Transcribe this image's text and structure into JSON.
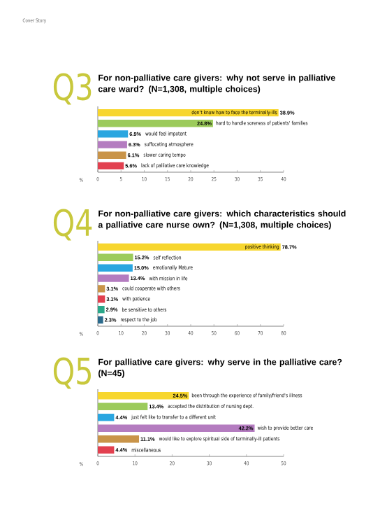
{
  "chart_data": [
    {
      "type": "bar",
      "orientation": "horizontal",
      "title": "For non-palliative care givers: why not serve in palliative care ward? (N=1,308, multiple choices)",
      "xlabel": "%",
      "annotations": [
        "Q3",
        "Cover Story"
      ],
      "categories": [
        "don't know how to face the terminally-ills",
        "hard to handle soreness of patients' families",
        "would feel impotent",
        "suffocating atmosphere",
        "slower caring tempo",
        "lack of palliative care knowledge"
      ],
      "values": [
        38.9,
        24.8,
        6.5,
        6.3,
        6.1,
        5.6
      ],
      "value_labels": [
        "38.9%",
        "24.8%",
        "6.5%",
        "6.3%",
        "6.1%",
        "5.6%"
      ],
      "colors": [
        "#f7d62e",
        "#9ccb5b",
        "#2aa6e0",
        "#b47cc0",
        "#c99449",
        "#e2404f"
      ],
      "xlim": [
        0,
        40
      ],
      "xticks": [
        0,
        5,
        10,
        15,
        20,
        25,
        30,
        35,
        40
      ]
    },
    {
      "type": "bar",
      "orientation": "horizontal",
      "title": "For non-palliative care givers: which characteristics should a palliative care nurse own? (N=1,308, multiple choices)",
      "xlabel": "%",
      "annotations": [
        "Q4"
      ],
      "categories": [
        "positive thinking",
        "self reflection",
        "emotionally Mature",
        "with mission in life",
        "could cooperate with others",
        "with patience",
        "be sensitive to others",
        "respect to the job"
      ],
      "values": [
        78.7,
        15.2,
        15.0,
        13.4,
        3.1,
        3.1,
        2.9,
        2.3
      ],
      "value_labels": [
        "78.7%",
        "15.2%",
        "15.0%",
        "13.4%",
        "3.1%",
        "3.1%",
        "2.9%",
        "2.3%"
      ],
      "colors": [
        "#f7d62e",
        "#9ccb5b",
        "#2aa6e0",
        "#b47cc0",
        "#c99449",
        "#e2404f",
        "#2aa88a",
        "#2a6a8c"
      ],
      "xlim": [
        0,
        80
      ],
      "xticks": [
        0,
        10,
        20,
        30,
        40,
        50,
        60,
        70,
        80
      ]
    },
    {
      "type": "bar",
      "orientation": "horizontal",
      "title": "For palliative care givers: why serve in the palliative care? (N=45)",
      "xlabel": "%",
      "annotations": [
        "Q5"
      ],
      "categories": [
        "been through the experience of family/friend's illness",
        "accepted the distribution of nursing dept.",
        "just felt like to transfer to a different unit",
        "wish to provide better care",
        "would like to explore spiritual side of terminally-ill patients",
        "miscellaneous"
      ],
      "values": [
        24.5,
        13.4,
        4.4,
        42.2,
        11.1,
        4.4
      ],
      "value_labels": [
        "24.5%",
        "13.4%",
        "4.4%",
        "42.2%",
        "11.1%",
        "4.4%"
      ],
      "colors": [
        "#f7d62e",
        "#9ccb5b",
        "#2aa6e0",
        "#b47cc0",
        "#c99449",
        "#e2404f"
      ],
      "xlim": [
        0,
        50
      ],
      "xticks": [
        0,
        10,
        20,
        30,
        40,
        50
      ]
    }
  ]
}
